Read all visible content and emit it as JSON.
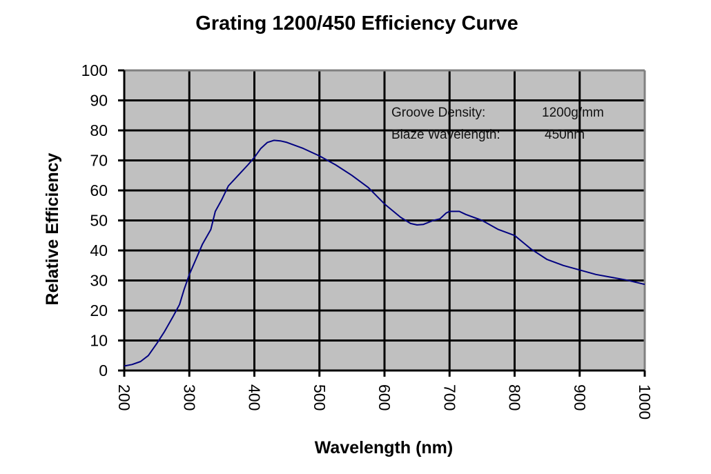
{
  "chart_data": {
    "type": "line",
    "title": "Grating 1200/450 Efficiency Curve",
    "xlabel": "Wavelength (nm)",
    "ylabel": "Relative Efficiency",
    "xlim": [
      200,
      1000
    ],
    "ylim": [
      0,
      100
    ],
    "xticks": [
      200,
      300,
      400,
      500,
      600,
      700,
      800,
      900,
      1000
    ],
    "yticks": [
      0,
      10,
      20,
      30,
      40,
      50,
      60,
      70,
      80,
      90,
      100
    ],
    "grid": true,
    "legend": "none",
    "annotations": [
      {
        "label": "Groove Density:",
        "value": "1200g/mm"
      },
      {
        "label": "Blaze Wavelength:",
        "value": "450nm"
      }
    ],
    "colors": {
      "plot_background": "#c0c0c0",
      "line": "#000080",
      "grid": "#000000",
      "border": "#808080"
    },
    "series": [
      {
        "name": "Relative Efficiency",
        "x": [
          200,
          212,
          225,
          237,
          250,
          262,
          275,
          285,
          292,
          300,
          310,
          320,
          333,
          340,
          350,
          360,
          375,
          390,
          400,
          410,
          420,
          430,
          440,
          450,
          475,
          500,
          525,
          550,
          575,
          600,
          625,
          640,
          650,
          660,
          675,
          685,
          695,
          700,
          715,
          725,
          750,
          775,
          800,
          825,
          850,
          875,
          900,
          925,
          950,
          975,
          1000
        ],
        "y": [
          1.5,
          2,
          3,
          5,
          9,
          13,
          18,
          22,
          27,
          32,
          37,
          42,
          47,
          53,
          57,
          61.5,
          65,
          68.5,
          71,
          74,
          76,
          76.7,
          76.5,
          76,
          74,
          71.5,
          68.5,
          65,
          61,
          55.5,
          51,
          49,
          48.5,
          48.7,
          50,
          50.5,
          52.5,
          53,
          53,
          52,
          50,
          47,
          45,
          40.5,
          37,
          35,
          33.5,
          32,
          31,
          30,
          28.7
        ]
      }
    ]
  }
}
